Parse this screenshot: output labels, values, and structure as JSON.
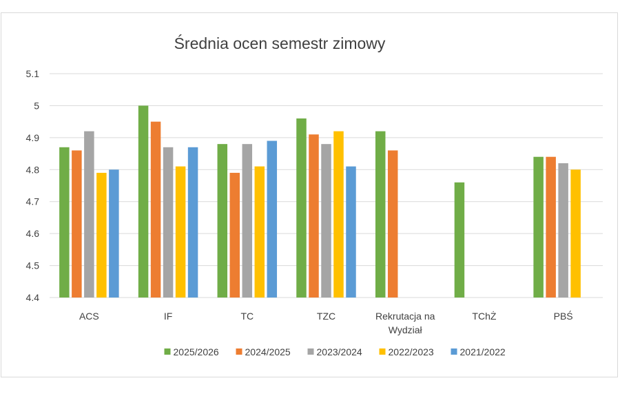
{
  "chart_data": {
    "type": "bar",
    "title": "Średnia ocen semestr zimowy",
    "xlabel": "",
    "ylabel": "",
    "ylim": [
      4.4,
      5.1
    ],
    "yticks": [
      "4.4",
      "4.5",
      "4.6",
      "4.7",
      "4.8",
      "4.9",
      "5",
      "5.1"
    ],
    "grid": true,
    "legend_position": "bottom",
    "categories": [
      [
        "ACS"
      ],
      [
        "IF"
      ],
      [
        "TC"
      ],
      [
        "TZC"
      ],
      [
        "Rekrutacja na",
        "Wydział"
      ],
      [
        "TChŻ"
      ],
      [
        "PBŚ"
      ]
    ],
    "series": [
      {
        "name": "2025/2026",
        "color": "#70ad47",
        "values": [
          4.87,
          5.0,
          4.88,
          4.96,
          4.92,
          4.76,
          4.84
        ]
      },
      {
        "name": "2024/2025",
        "color": "#ed7d31",
        "values": [
          4.86,
          4.95,
          4.79,
          4.91,
          4.86,
          null,
          4.84
        ]
      },
      {
        "name": "2023/2024",
        "color": "#a5a5a5",
        "values": [
          4.92,
          4.87,
          4.88,
          4.88,
          null,
          null,
          4.82
        ]
      },
      {
        "name": "2022/2023",
        "color": "#ffc000",
        "values": [
          4.79,
          4.81,
          4.81,
          4.92,
          null,
          null,
          4.8
        ]
      },
      {
        "name": "2021/2022",
        "color": "#5b9bd5",
        "values": [
          4.8,
          4.87,
          4.89,
          4.81,
          null,
          null,
          null
        ]
      }
    ]
  }
}
